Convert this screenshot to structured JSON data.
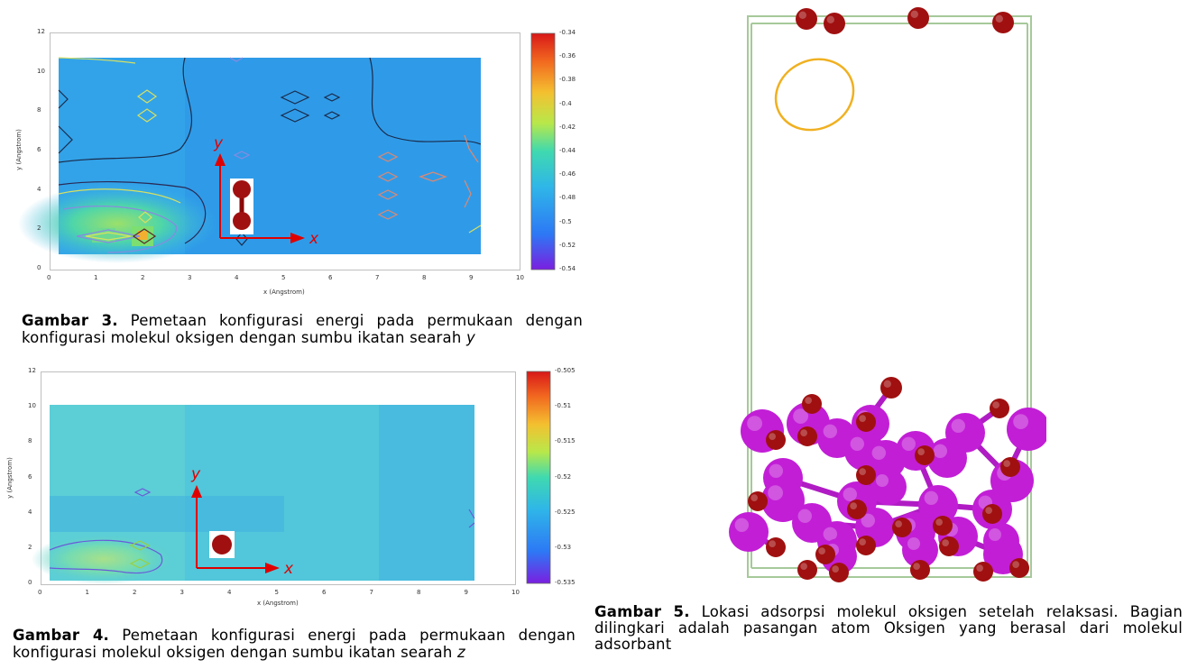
{
  "figure3": {
    "caption_label": "Gambar 3.",
    "caption_text": "Pemetaan konfigurasi energi pada permukaan dengan konfigurasi molekul oksigen dengan sumbu ikatan searah",
    "caption_axis": "y",
    "chart_data": {
      "type": "heatmap",
      "xlabel": "x (Angstrom)",
      "ylabel": "y (Angstrom)",
      "xlim": [
        0,
        10
      ],
      "ylim": [
        0,
        12
      ],
      "x_ticks": [
        "0",
        "1",
        "2",
        "3",
        "4",
        "5",
        "6",
        "7",
        "8",
        "9",
        "10"
      ],
      "y_ticks": [
        "0",
        "2",
        "4",
        "6",
        "8",
        "10",
        "12"
      ],
      "colorbar_range": [
        -0.54,
        -0.34
      ],
      "colorbar_ticks": [
        "-0.34",
        "-0.36",
        "-0.38",
        "-0.4",
        "-0.42",
        "-0.44",
        "-0.46",
        "-0.48",
        "-0.5",
        "-0.52",
        "-0.54"
      ],
      "data_extent_x": [
        0.2,
        9.2
      ],
      "data_extent_y": [
        0.8,
        10.7
      ],
      "background_value": -0.505,
      "low_energy_region_value": -0.47,
      "hotspots": [
        {
          "x": 2.0,
          "y": 1.8,
          "value": -0.36
        },
        {
          "x": 1.2,
          "y": 1.8,
          "value": -0.44
        },
        {
          "x": 2.0,
          "y": 2.8,
          "value": -0.42
        }
      ],
      "inset_axes": [
        "y",
        "x"
      ],
      "inset_molecule": "O2 vertical"
    }
  },
  "figure4": {
    "caption_label": "Gambar 4.",
    "caption_text": "Pemetaan konfigurasi energi pada permukaan dengan konfigurasi molekul oksigen dengan sumbu ikatan searah",
    "caption_axis": "z",
    "chart_data": {
      "type": "heatmap",
      "xlabel": "x (Angstrom)",
      "ylabel": "y (Angstrom)",
      "xlim": [
        0,
        10
      ],
      "ylim": [
        0,
        12
      ],
      "x_ticks": [
        "0",
        "1",
        "2",
        "3",
        "4",
        "5",
        "6",
        "7",
        "8",
        "9",
        "10"
      ],
      "y_ticks": [
        "0",
        "2",
        "4",
        "6",
        "8",
        "10",
        "12"
      ],
      "colorbar_range": [
        -0.535,
        -0.505
      ],
      "colorbar_ticks": [
        "-0.505",
        "-0.51",
        "-0.515",
        "-0.52",
        "-0.525",
        "-0.53",
        "-0.535"
      ],
      "data_extent_x": [
        0.2,
        9.2
      ],
      "data_extent_y": [
        0.8,
        10.2
      ],
      "background_value": -0.526,
      "low_energy_region_value": -0.519,
      "inset_axes": [
        "y",
        "x"
      ],
      "inset_molecule": "O2 top view"
    }
  },
  "figure5": {
    "caption_label": "Gambar 5.",
    "caption_text": "Lokasi adsorpsi  molekul oksigen setelah relaksasi. Bagian dilingkari adalah pasangan atom Oksigen yang berasal dari molekul adsorbant"
  },
  "colors": {
    "oxygen_atom": "#a01010",
    "metal_atom": "#c21ed6",
    "bond": "#b01cc4",
    "cell_box": "#a6c99a",
    "highlight_ellipse": "#f0b020",
    "inset_axis": "#e00000"
  }
}
